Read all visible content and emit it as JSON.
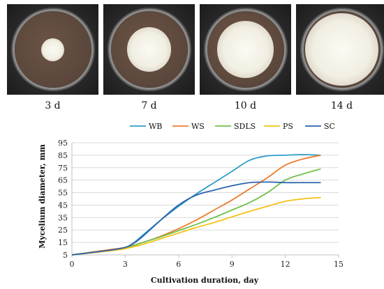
{
  "photos": [
    {
      "caption": "3 d",
      "mycelium_fraction": 0.3
    },
    {
      "caption": "7 d",
      "mycelium_fraction": 0.58
    },
    {
      "caption": "10 d",
      "mycelium_fraction": 0.74
    },
    {
      "caption": "14 d",
      "mycelium_fraction": 0.95
    }
  ],
  "chart_data": {
    "type": "line",
    "xlabel": "Cultivation duration, day",
    "ylabel": "Mycelium diameter, mm",
    "xlim": [
      0,
      15
    ],
    "ylim": [
      5,
      95
    ],
    "xticks": [
      0,
      3,
      6,
      9,
      12,
      15
    ],
    "yticks": [
      5,
      15,
      25,
      35,
      45,
      55,
      65,
      75,
      85,
      95
    ],
    "grid": "horizontal",
    "legend": "top",
    "series": [
      {
        "name": "WB",
        "color": "#2e9ec8",
        "x": [
          0,
          2,
          3,
          3.5,
          4,
          5,
          6,
          7,
          8,
          9,
          10,
          11,
          12,
          13,
          14
        ],
        "y": [
          5,
          8.5,
          11,
          15,
          21,
          33,
          44,
          54,
          63,
          72,
          81,
          84.5,
          85,
          85.5,
          85
        ]
      },
      {
        "name": "WS",
        "color": "#ed7d31",
        "x": [
          0,
          2,
          3,
          4,
          5,
          6,
          7,
          8,
          9,
          10,
          11,
          12,
          13,
          14
        ],
        "y": [
          5,
          9,
          11,
          15,
          20,
          26,
          33,
          41,
          49,
          58,
          67,
          77,
          82,
          85
        ]
      },
      {
        "name": "SDLS",
        "color": "#70c04a",
        "x": [
          0,
          2,
          3,
          4,
          5,
          6,
          7,
          8,
          9,
          10,
          11,
          12,
          13,
          14
        ],
        "y": [
          5,
          8.5,
          10.5,
          15,
          19.5,
          24.5,
          29.5,
          35,
          41,
          47,
          55,
          65,
          70,
          74
        ]
      },
      {
        "name": "PS",
        "color": "#f4c214",
        "x": [
          0,
          2,
          3,
          4,
          5,
          6,
          7,
          8,
          9,
          10,
          11,
          12,
          13,
          14
        ],
        "y": [
          5,
          8,
          10,
          13.5,
          18,
          22.5,
          27,
          31,
          35.5,
          40,
          44,
          48,
          50,
          51
        ]
      },
      {
        "name": "SC",
        "color": "#2b63ad",
        "x": [
          0,
          2,
          3,
          3.5,
          4,
          5,
          6,
          7,
          8,
          9,
          10,
          11,
          12,
          13,
          14
        ],
        "y": [
          5,
          8.5,
          11,
          14.5,
          20,
          33,
          45,
          53,
          57,
          60.5,
          63,
          63.5,
          63,
          63,
          63
        ]
      }
    ]
  }
}
